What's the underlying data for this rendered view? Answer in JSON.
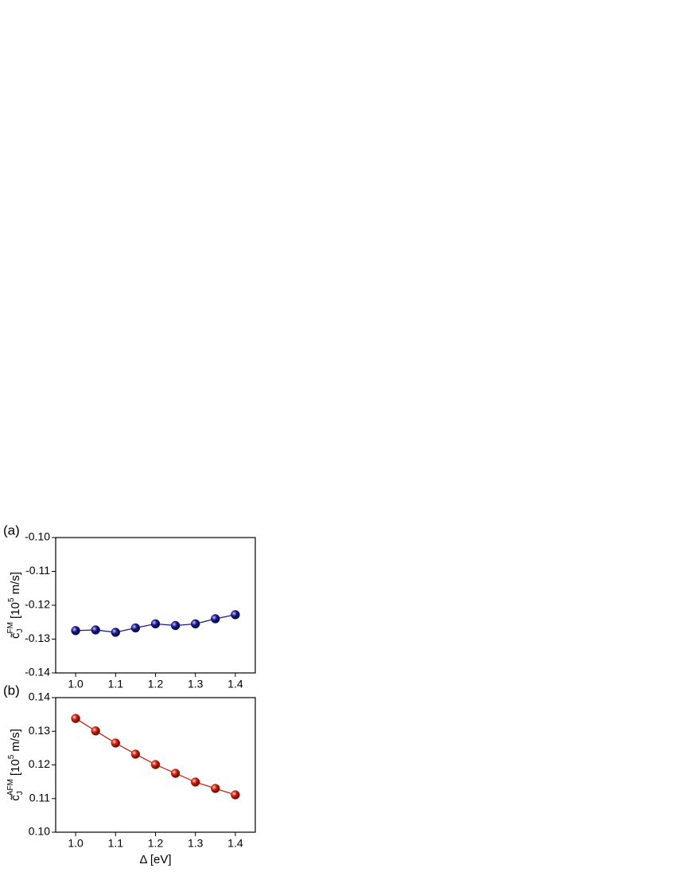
{
  "chart_data": [
    {
      "type": "line",
      "panel_label": "(a)",
      "y_label": {
        "symbol": "c̃",
        "subscript": "J",
        "superscript": "FM",
        "unit_prefix": "[10",
        "unit_exponent": "5",
        "unit_suffix": " m/s]"
      },
      "x": [
        1.0,
        1.05,
        1.1,
        1.15,
        1.2,
        1.25,
        1.3,
        1.35,
        1.4
      ],
      "series": [
        {
          "color": "#1a1a8c",
          "values": [
            -0.1275,
            -0.1273,
            -0.128,
            -0.1267,
            -0.1255,
            -0.126,
            -0.1255,
            -0.124,
            -0.1228
          ]
        }
      ],
      "xlim": [
        0.95,
        1.45
      ],
      "xticks": [
        {
          "value": 1,
          "label": "1.0"
        },
        1.1,
        1.2,
        1.3,
        1.4
      ],
      "ylim": [
        -0.14,
        -0.1
      ],
      "yticks": [
        -0.14,
        -0.13,
        -0.12,
        -0.11,
        {
          "value": -0.1,
          "label": "-0.10"
        }
      ]
    },
    {
      "type": "line",
      "panel_label": "(b)",
      "y_label": {
        "symbol": "c̃",
        "subscript": "J",
        "superscript": "AFM",
        "unit_prefix": "[10",
        "unit_exponent": "5",
        "unit_suffix": " m/s]"
      },
      "x_label": "Δ [eV]",
      "x": [
        1.0,
        1.05,
        1.1,
        1.15,
        1.2,
        1.25,
        1.3,
        1.35,
        1.4
      ],
      "series": [
        {
          "color": "#cc2211",
          "values": [
            0.1338,
            0.1301,
            0.1265,
            0.1232,
            0.1201,
            0.1175,
            0.1149,
            0.113,
            0.1111
          ]
        }
      ],
      "xlim": [
        0.95,
        1.45
      ],
      "xticks": [
        {
          "value": 1,
          "label": "1.0"
        },
        1.1,
        1.2,
        1.3,
        1.4
      ],
      "ylim": [
        0.1,
        0.14
      ],
      "yticks": [
        {
          "value": 0.1,
          "label": "0.10"
        },
        0.11,
        0.12,
        0.13,
        0.14
      ]
    }
  ]
}
